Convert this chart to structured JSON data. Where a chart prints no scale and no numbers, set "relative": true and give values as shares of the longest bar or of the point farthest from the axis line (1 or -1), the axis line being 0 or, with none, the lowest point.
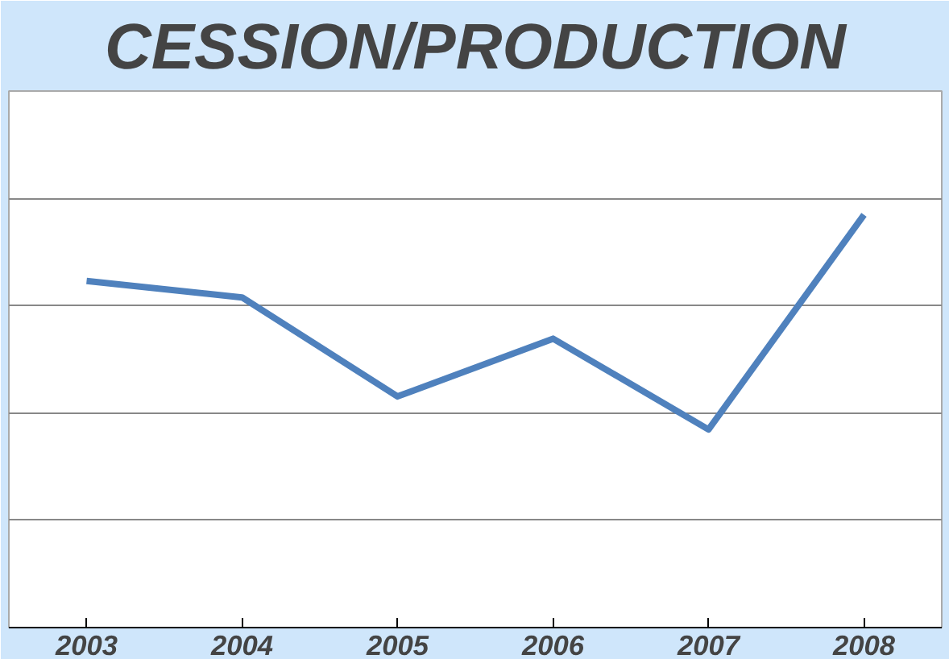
{
  "chart_data": {
    "type": "line",
    "title": "CESSION/PRODUCTION",
    "relative": true,
    "grid": "y",
    "marker": "none",
    "line_style": "solid",
    "categories": [
      "2003",
      "2004",
      "2005",
      "2006",
      "2007",
      "2008"
    ],
    "series": [
      {
        "color": "#4f81bd",
        "values": [
          0.84,
          0.8,
          0.56,
          0.7,
          0.48,
          1
        ]
      }
    ]
  }
}
